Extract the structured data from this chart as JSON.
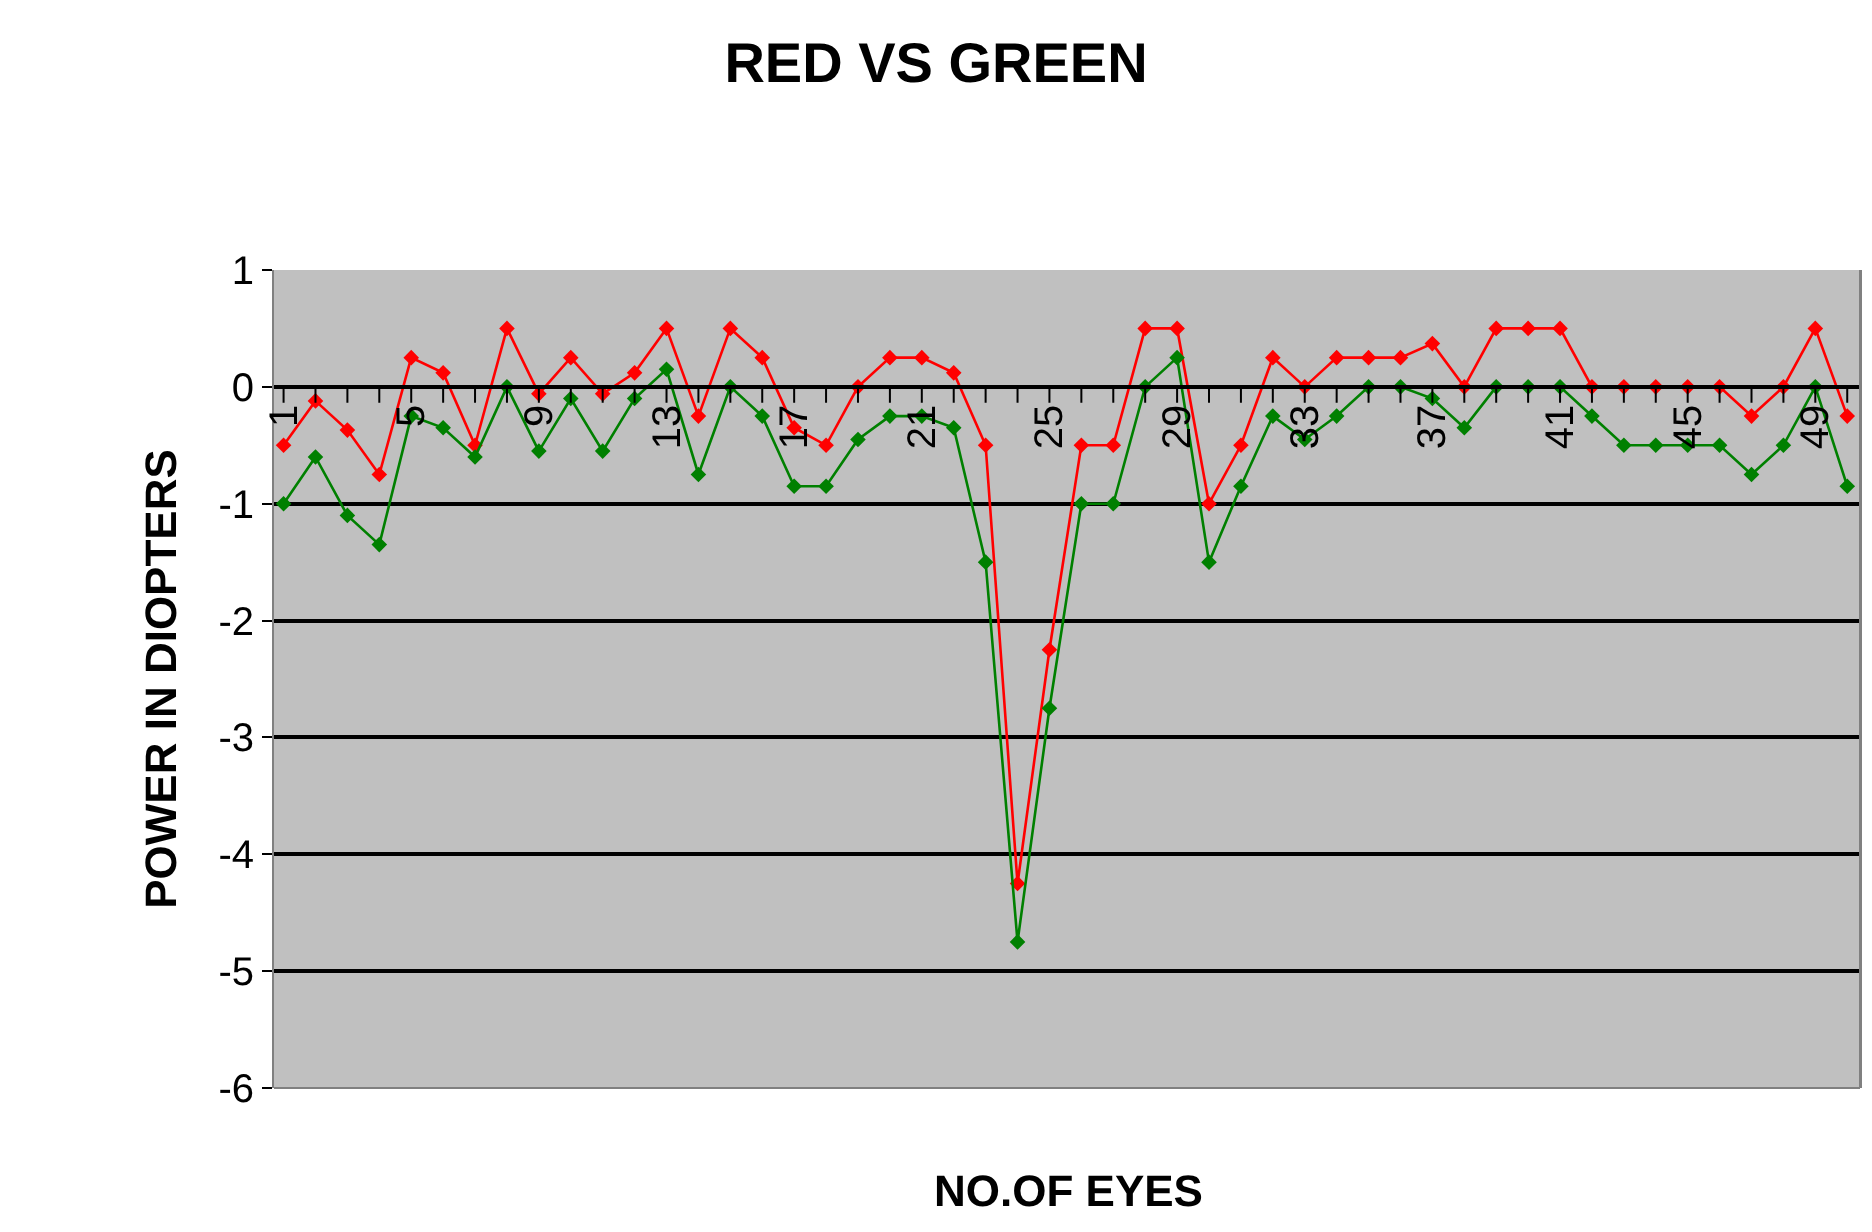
{
  "chart_data": {
    "type": "line",
    "title": "RED VS GREEN",
    "xlabel": "NO.OF EYES",
    "ylabel": "POWER IN DIOPTERS",
    "categories": [
      "1",
      null,
      null,
      null,
      "5",
      null,
      null,
      null,
      "9",
      null,
      null,
      null,
      "13",
      null,
      null,
      null,
      "17",
      null,
      null,
      null,
      "21",
      null,
      null,
      null,
      "25",
      null,
      null,
      null,
      "29",
      null,
      null,
      null,
      "33",
      null,
      null,
      null,
      "37",
      null,
      null,
      null,
      "41",
      null,
      null,
      null,
      "45",
      null,
      null,
      null,
      "49",
      null
    ],
    "series": [
      {
        "color": "#ff0000",
        "values": [
          -0.5,
          -0.12,
          -0.37,
          -0.75,
          0.25,
          0.12,
          -0.5,
          0.5,
          -0.06,
          0.25,
          -0.06,
          0.12,
          0.5,
          -0.25,
          0.5,
          0.25,
          -0.35,
          -0.5,
          0,
          0.25,
          0.25,
          0.12,
          -0.5,
          -4.25,
          -2.25,
          -0.5,
          -0.5,
          0.5,
          0.5,
          -1,
          -0.5,
          0.25,
          0,
          0.25,
          0.25,
          0.25,
          0.37,
          0,
          0.5,
          0.5,
          0.5,
          0,
          0,
          0,
          0,
          0,
          -0.25,
          0,
          0.5,
          -0.25
        ]
      },
      {
        "color": "#008000",
        "values": [
          -1,
          -0.6,
          -1.1,
          -1.35,
          -0.25,
          -0.35,
          -0.6,
          0,
          -0.55,
          -0.1,
          -0.55,
          -0.1,
          0.15,
          -0.75,
          0,
          -0.25,
          -0.85,
          -0.85,
          -0.45,
          -0.25,
          -0.25,
          -0.35,
          -1.5,
          -4.75,
          -2.75,
          -1,
          -1,
          0,
          0.25,
          -1.5,
          -0.85,
          -0.25,
          -0.45,
          -0.25,
          0,
          0,
          -0.1,
          -0.35,
          0,
          0,
          0,
          -0.25,
          -0.5,
          -0.5,
          -0.5,
          -0.5,
          -0.75,
          -0.5,
          0,
          -0.85
        ]
      }
    ],
    "ylim": [
      -6,
      1
    ],
    "yticks": [
      -6,
      -5,
      -4,
      -3,
      -2,
      -1,
      0,
      1
    ],
    "grid": "y",
    "marker": "diamond",
    "line_style": "solid",
    "legend": false
  }
}
